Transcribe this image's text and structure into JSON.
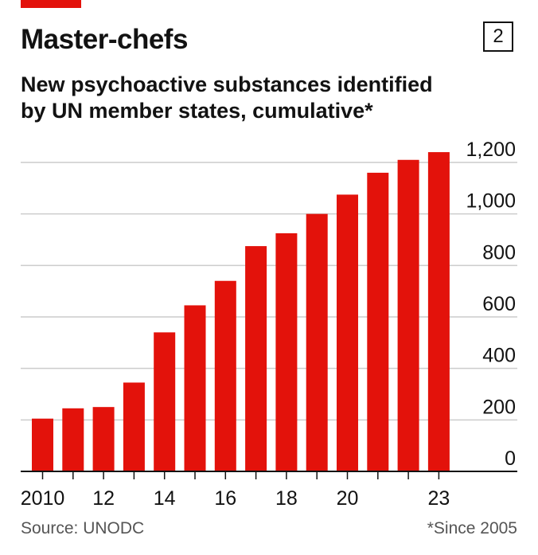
{
  "header": {
    "title": "Master-chefs",
    "badge": "2",
    "subtitle_line1": "New psychoactive substances identified",
    "subtitle_line2": "by UN member states, cumulative*"
  },
  "footer": {
    "source": "Source: UNODC",
    "note": "*Since 2005"
  },
  "colors": {
    "bar": "#e3120b",
    "text": "#121212",
    "grid": "#cccccc",
    "axis": "#121212"
  },
  "chart_data": {
    "type": "bar",
    "categories": [
      "2010",
      "2011",
      "2012",
      "2013",
      "2014",
      "2015",
      "2016",
      "2017",
      "2018",
      "2019",
      "2020",
      "2021",
      "2022",
      "2023"
    ],
    "values": [
      205,
      245,
      250,
      345,
      540,
      645,
      740,
      875,
      925,
      1000,
      1075,
      1160,
      1210,
      1240
    ],
    "x_tick_labels": [
      {
        "index": 0,
        "label": "2010"
      },
      {
        "index": 2,
        "label": "12"
      },
      {
        "index": 4,
        "label": "14"
      },
      {
        "index": 6,
        "label": "16"
      },
      {
        "index": 8,
        "label": "18"
      },
      {
        "index": 10,
        "label": "20"
      },
      {
        "index": 13,
        "label": "23"
      }
    ],
    "y_ticks": [
      0,
      200,
      400,
      600,
      800,
      1000,
      1200
    ],
    "y_tick_labels": [
      "0",
      "200",
      "400",
      "600",
      "800",
      "1,000",
      "1,200"
    ],
    "ylim": [
      0,
      1200
    ],
    "y_axis_side": "right",
    "grid": true,
    "legend": "none"
  }
}
